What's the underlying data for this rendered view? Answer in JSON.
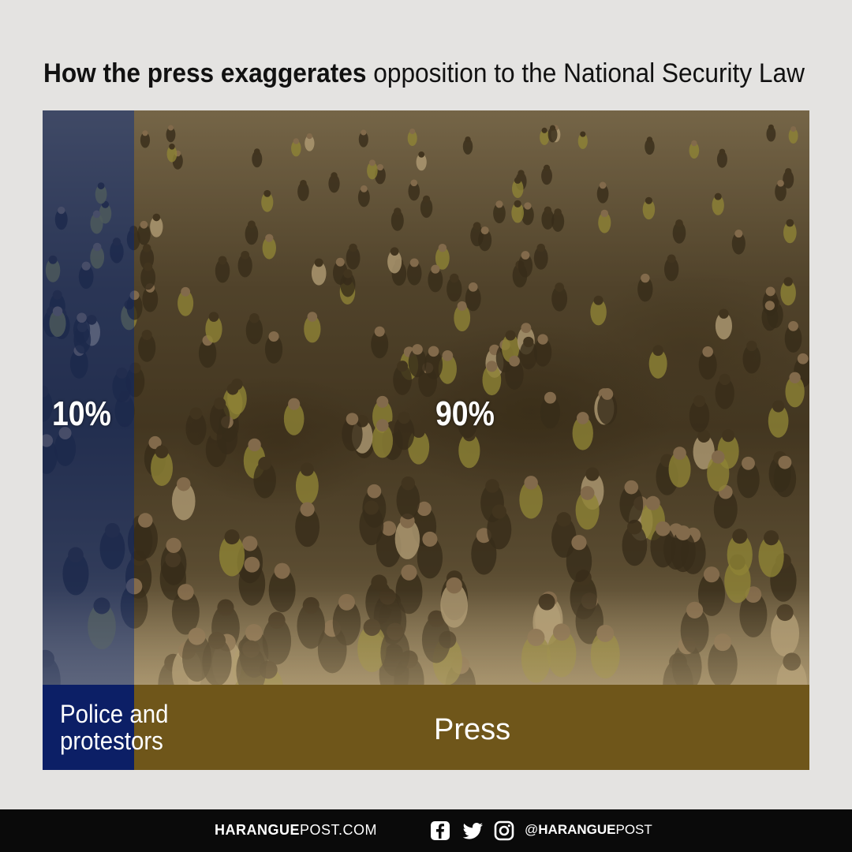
{
  "title": {
    "bold": "How the press exaggerates",
    "light": "opposition to the National Security Law"
  },
  "chart_data": {
    "type": "bar",
    "orientation": "horizontal-stacked",
    "categories": [
      "Police and protestors",
      "Press"
    ],
    "values": [
      10,
      90
    ],
    "value_labels": [
      "10%",
      "90%"
    ],
    "colors": [
      "#0c1f66",
      "#6f561a"
    ]
  },
  "footer": {
    "site_bold": "HARANGUE",
    "site_rest": "POST.COM",
    "handle_prefix": "@",
    "handle_bold": "HARANGUE",
    "handle_rest": "POST",
    "icons": [
      "facebook-icon",
      "twitter-icon",
      "instagram-icon"
    ]
  }
}
